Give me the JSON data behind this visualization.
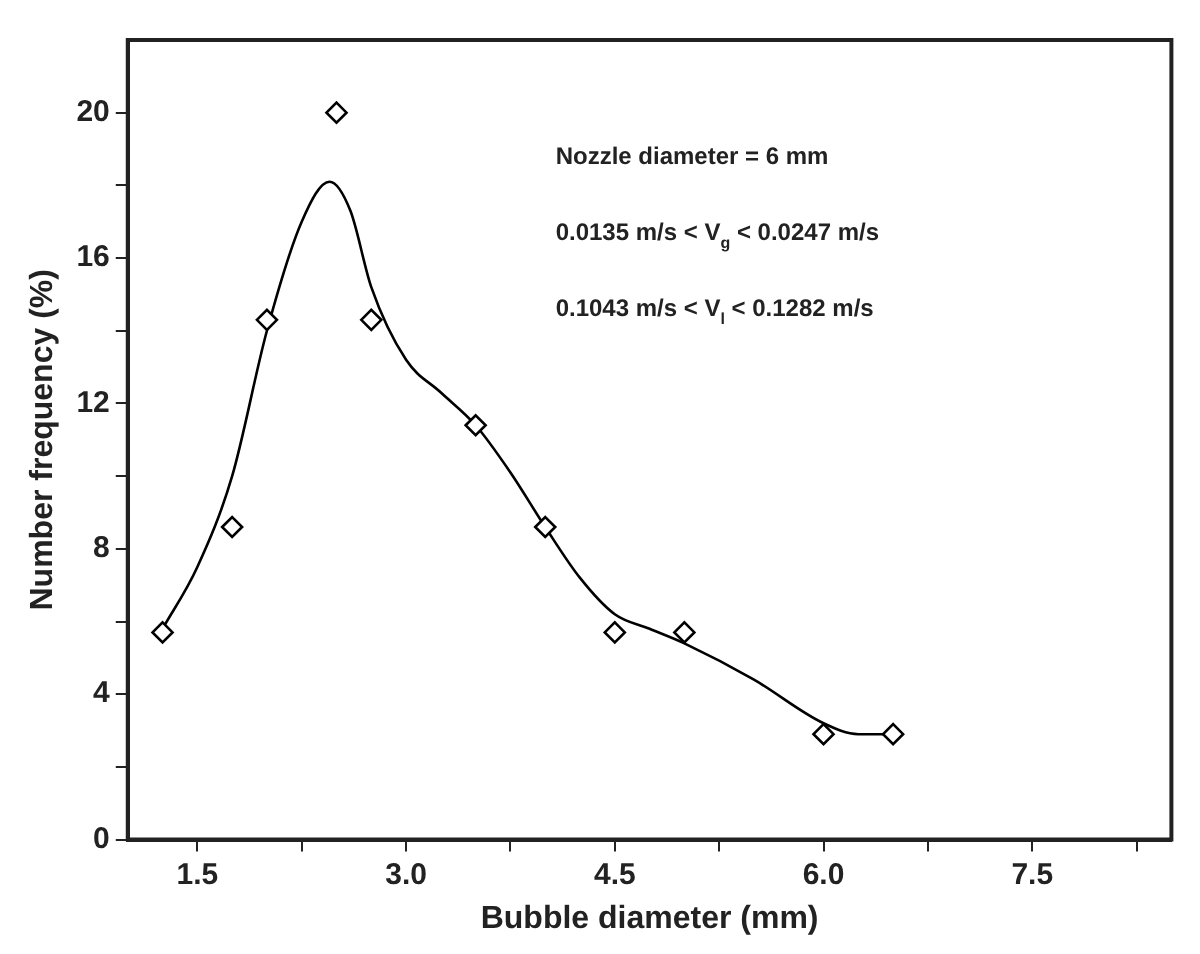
{
  "chart_data": {
    "type": "scatter",
    "xlabel": "Bubble diameter (mm)",
    "ylabel": "Number frequency (%)",
    "annotations": [
      "Nozzle diameter = 6 mm",
      "0.0135 m/s < V$_{g}$ < 0.0247 m/s",
      "0.1043 m/s < V$_{l}$ < 0.1282 m/s"
    ],
    "series": [
      {
        "color": "#000000",
        "marker": "diamond",
        "x": [
          1.25,
          1.75,
          2.0,
          2.5,
          2.75,
          3.5,
          4.0,
          4.5,
          5.0,
          6.0,
          6.5
        ],
        "values": [
          5.7,
          8.6,
          14.3,
          20,
          14.3,
          11.4,
          8.6,
          5.7,
          5.7,
          2.9,
          2.9
        ]
      },
      {
        "type": "line",
        "color": "#000000",
        "marker": "none",
        "line_style": "solid",
        "x": [
          1.25,
          1.5,
          1.75,
          2.0,
          2.25,
          2.45,
          2.6,
          2.75,
          3.0,
          3.25,
          3.5,
          3.75,
          4.0,
          4.25,
          4.5,
          4.75,
          5.0,
          5.5,
          6.0,
          6.25,
          6.5
        ],
        "values": [
          5.8,
          7.5,
          10,
          14,
          17,
          18.1,
          17.3,
          15.2,
          13.2,
          12.3,
          11.4,
          10.1,
          8.6,
          7.2,
          6.2,
          5.8,
          5.4,
          4.4,
          3.2,
          2.9,
          2.9
        ]
      }
    ],
    "xlim": [
      1,
      8.5
    ],
    "xticks": [
      {
        "value": 1.5,
        "label": "1.5"
      },
      {
        "value": 2.25,
        "label": null
      },
      {
        "value": 3,
        "label": "3.0"
      },
      {
        "value": 3.75,
        "label": null
      },
      {
        "value": 4.5,
        "label": "4.5"
      },
      {
        "value": 5.25,
        "label": null
      },
      {
        "value": 6,
        "label": "6.0"
      },
      {
        "value": 6.75,
        "label": null
      },
      {
        "value": 7.5,
        "label": "7.5"
      },
      {
        "value": 8.25,
        "label": null
      }
    ],
    "ylim": [
      0,
      22
    ],
    "yticks": [
      0,
      {
        "value": 2,
        "label": null
      },
      4,
      {
        "value": 6,
        "label": null
      },
      8,
      {
        "value": 10,
        "label": null
      },
      12,
      {
        "value": 14,
        "label": null
      },
      16,
      {
        "value": 18,
        "label": null
      },
      20
    ],
    "grid": false,
    "legend": false
  }
}
